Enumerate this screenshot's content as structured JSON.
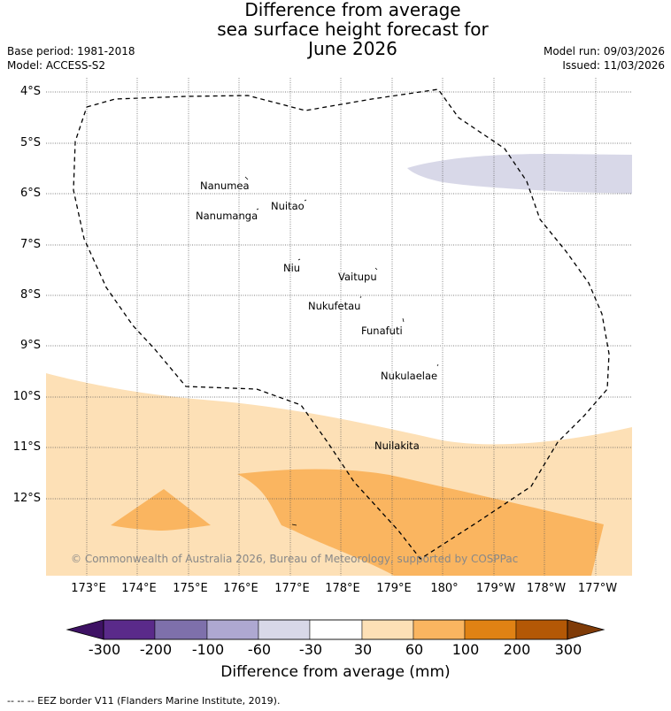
{
  "title_lines": [
    "Difference from average",
    "sea surface height forecast for",
    "June 2026"
  ],
  "base_period": "Base period: 1981-2018",
  "model": "Model: ACCESS-S2",
  "model_run": "Model run: 09/03/2026",
  "issued": "Issued: 11/03/2026",
  "lat_labels": [
    "4°S",
    "5°S",
    "6°S",
    "7°S",
    "8°S",
    "9°S",
    "10°S",
    "11°S",
    "12°S"
  ],
  "lon_labels": [
    "173°E",
    "174°E",
    "175°E",
    "176°E",
    "177°E",
    "178°E",
    "179°E",
    "180°",
    "179°W",
    "178°W",
    "177°W"
  ],
  "places": [
    "Nanumea",
    "Nuitao",
    "Nanumanga",
    "Niu",
    "Vaitupu",
    "Nukufetau",
    "Funafuti",
    "Nukulaelae",
    "Nuilakita"
  ],
  "copyright": "© Commonwealth of Australia 2026, Bureau of Meteorology, supported by COSPPac",
  "colorbar": {
    "ticks": [
      "-300",
      "-200",
      "-100",
      "-60",
      "-30",
      "30",
      "60",
      "100",
      "200",
      "300"
    ],
    "colors": [
      "#3e1264",
      "#5a2a8a",
      "#7e70ab",
      "#aea8d1",
      "#d8d8e8",
      "#ffffff",
      "#fde0b6",
      "#fab560",
      "#e08214",
      "#b35806",
      "#7f3b08"
    ],
    "title": "Difference from average (mm)"
  },
  "legend_text": "--  --  -- EEZ border V11 (Flanders Marine Institute, 2019)."
}
